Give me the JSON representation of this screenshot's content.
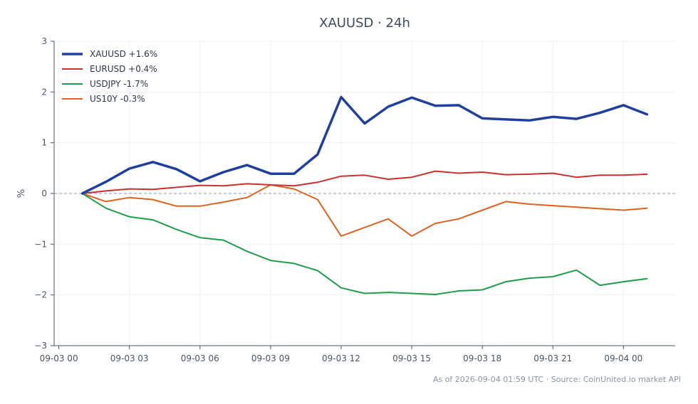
{
  "chart_data": {
    "type": "line",
    "title": "XAUUSD · 24h",
    "xlabel": "",
    "ylabel": "%",
    "ylim": [
      -3,
      3
    ],
    "yticks": [
      -3,
      -2,
      -1,
      0,
      1,
      2,
      3
    ],
    "ytick_labels": [
      "−3",
      "−2",
      "−1",
      "0",
      "1",
      "2",
      "3"
    ],
    "x_ticks": [
      "09-03 00",
      "09-03 03",
      "09-03 06",
      "09-03 09",
      "09-03 12",
      "09-03 15",
      "09-03 18",
      "09-03 21",
      "09-04 00"
    ],
    "x_hours": [
      1,
      2,
      3,
      4,
      5,
      6,
      7,
      8,
      9,
      10,
      11,
      12,
      13,
      14,
      15,
      16,
      17,
      18,
      19,
      20,
      21,
      22,
      23,
      24,
      25
    ],
    "grid": true,
    "legend": "top-left",
    "series": [
      {
        "name": "XAUUSD +1.6%",
        "color": "#1f3fa0",
        "values": [
          0,
          0.23,
          0.49,
          0.62,
          0.48,
          0.24,
          0.42,
          0.56,
          0.39,
          0.39,
          0.77,
          1.9,
          1.38,
          1.71,
          1.89,
          1.73,
          1.74,
          1.48,
          1.46,
          1.44,
          1.51,
          1.47,
          1.59,
          1.74,
          1.56
        ]
      },
      {
        "name": "EURUSD +0.4%",
        "color": "#cc2f2f",
        "values": [
          0,
          0.05,
          0.09,
          0.08,
          0.12,
          0.16,
          0.15,
          0.19,
          0.17,
          0.15,
          0.22,
          0.34,
          0.36,
          0.28,
          0.32,
          0.44,
          0.4,
          0.42,
          0.37,
          0.38,
          0.4,
          0.32,
          0.36,
          0.36,
          0.38
        ]
      },
      {
        "name": "USDJPY -1.7%",
        "color": "#1e9e4a",
        "values": [
          0,
          -0.29,
          -0.46,
          -0.52,
          -0.71,
          -0.87,
          -0.92,
          -1.14,
          -1.32,
          -1.38,
          -1.52,
          -1.86,
          -1.97,
          -1.95,
          -1.97,
          -1.99,
          -1.92,
          -1.9,
          -1.74,
          -1.67,
          -1.64,
          -1.51,
          -1.81,
          -1.74,
          -1.68
        ]
      },
      {
        "name": "US10Y -0.3%",
        "color": "#e0621c",
        "values": [
          0,
          -0.16,
          -0.08,
          -0.12,
          -0.25,
          -0.25,
          -0.17,
          -0.08,
          0.17,
          0.09,
          -0.12,
          -0.84,
          -0.67,
          -0.5,
          -0.84,
          -0.59,
          -0.5,
          -0.33,
          -0.16,
          -0.21,
          -0.24,
          -0.27,
          -0.3,
          -0.33,
          -0.29
        ]
      }
    ],
    "footer": "As of 2026-09-04 01:59 UTC · Source: CoinUnited.io market API"
  }
}
